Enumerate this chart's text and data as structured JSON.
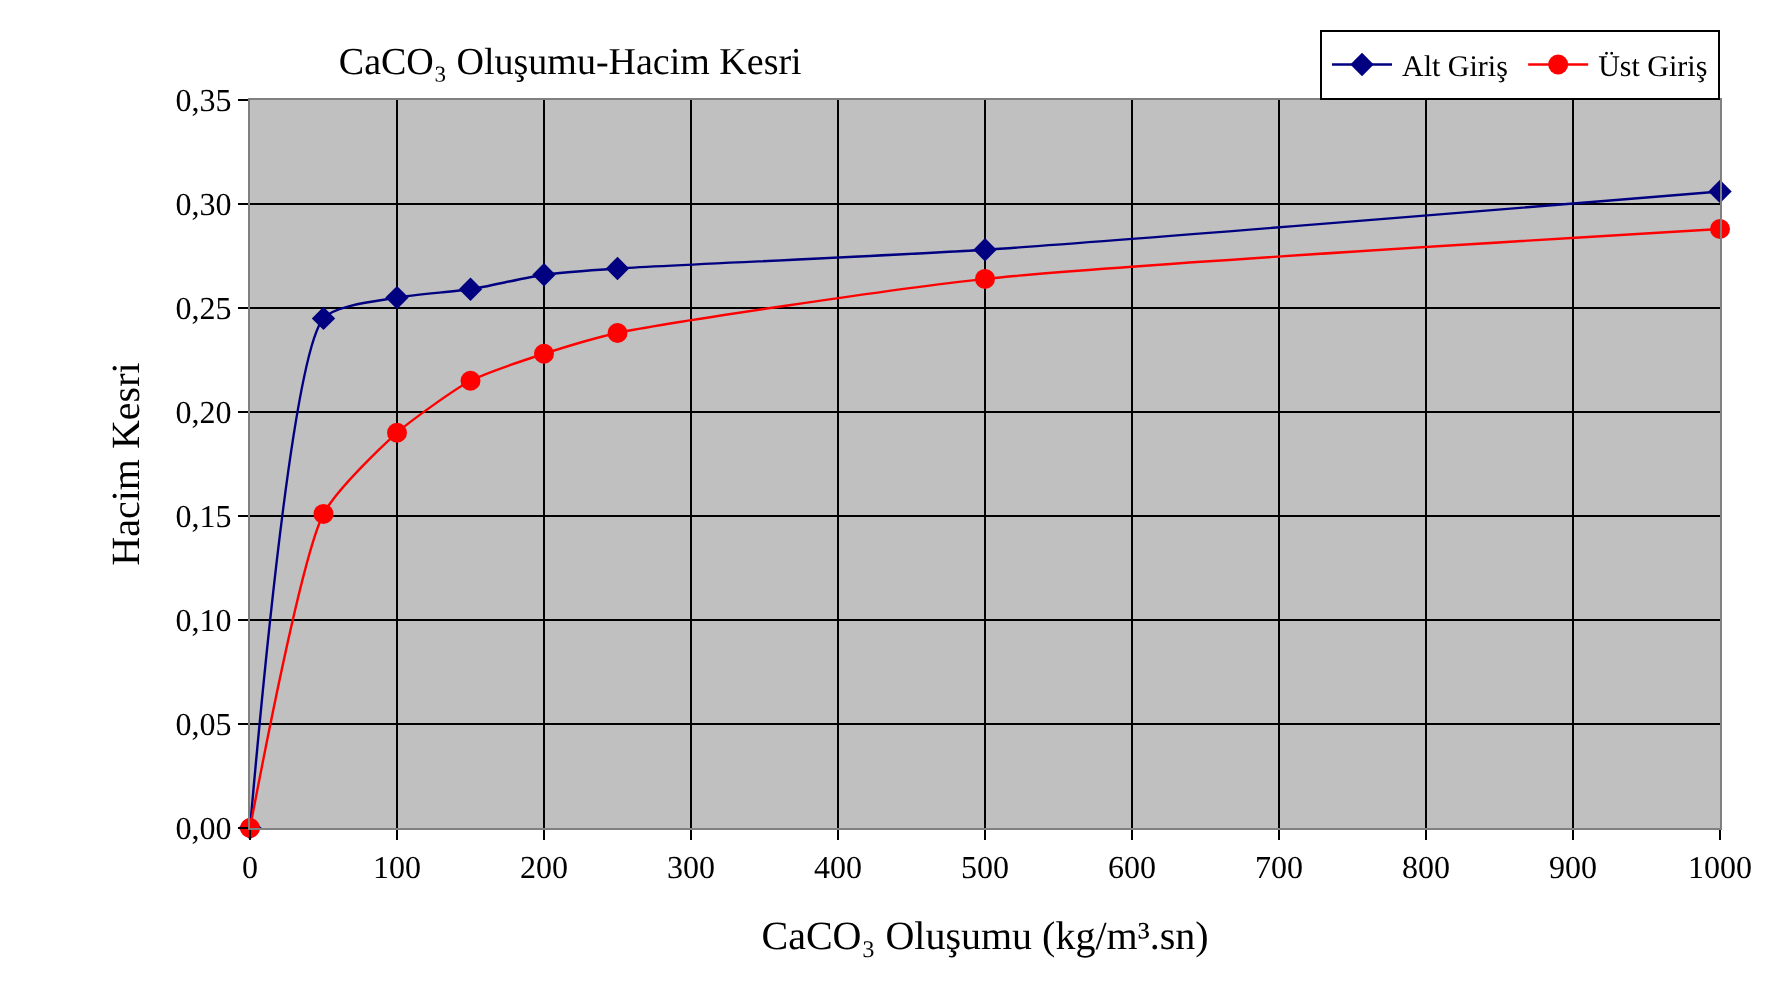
{
  "chart_data": {
    "type": "line",
    "title": "CaCO₃ Oluşumu-Hacim Kesri",
    "xlabel": "CaCO₃ Oluşumu (kg/m³.sn)",
    "ylabel": "Hacim Kesri",
    "x": [
      0,
      50,
      100,
      150,
      200,
      250,
      500,
      1000
    ],
    "series": [
      {
        "name": "Alt Giriş",
        "color": "#000080",
        "marker": "diamond",
        "values": [
          0,
          0.245,
          0.255,
          0.259,
          0.266,
          0.269,
          0.278,
          0.306
        ]
      },
      {
        "name": "Üst Giriş",
        "color": "#ff0000",
        "marker": "circle",
        "values": [
          0,
          0.151,
          0.19,
          0.215,
          0.228,
          0.238,
          0.264,
          0.288
        ]
      }
    ],
    "xlim": [
      0,
      1000
    ],
    "xticks": [
      0,
      100,
      200,
      300,
      400,
      500,
      600,
      700,
      800,
      900,
      1000
    ],
    "ylim": [
      0,
      0.35
    ],
    "yticks": [
      {
        "value": 0,
        "label": "0,00"
      },
      {
        "value": 0.05,
        "label": "0,05"
      },
      {
        "value": 0.1,
        "label": "0,10"
      },
      {
        "value": 0.15,
        "label": "0,15"
      },
      {
        "value": 0.2,
        "label": "0,20"
      },
      {
        "value": 0.25,
        "label": "0,25"
      },
      {
        "value": 0.3,
        "label": "0,30"
      },
      {
        "value": 0.35,
        "label": "0,35"
      }
    ],
    "grid": true,
    "legend": "top right",
    "line_style": "solid"
  }
}
